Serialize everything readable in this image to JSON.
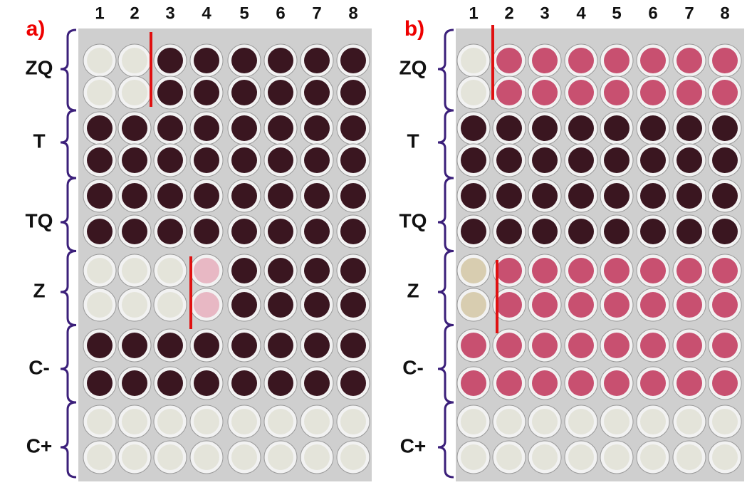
{
  "panels": [
    {
      "label": "a)",
      "columns": [
        "1",
        "2",
        "3",
        "4",
        "5",
        "6",
        "7",
        "8"
      ],
      "groups": [
        "ZQ",
        "T",
        "TQ",
        "Z",
        "C-",
        "C+"
      ]
    },
    {
      "label": "b)",
      "columns": [
        "1",
        "2",
        "3",
        "4",
        "5",
        "6",
        "7",
        "8"
      ],
      "groups": [
        "ZQ",
        "T",
        "TQ",
        "Z",
        "C-",
        "C+"
      ]
    }
  ]
}
